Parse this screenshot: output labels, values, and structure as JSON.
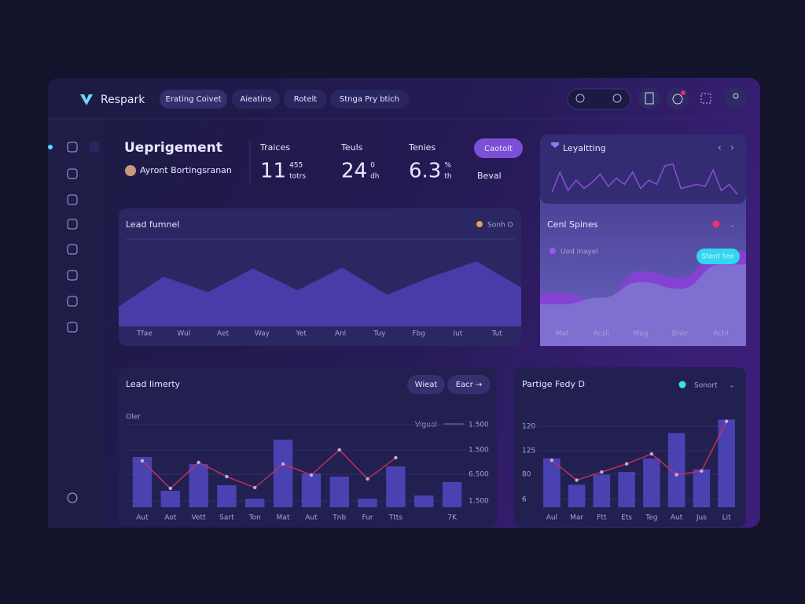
{
  "header": {
    "brand": "Respark",
    "tabs": [
      "Erating Coivet",
      "Aieatins",
      "Rotelt",
      "Stnga Pry btich"
    ]
  },
  "overview": {
    "title": "Ueprigement",
    "user": "Ayront Bortingsranan",
    "stats": [
      {
        "label": "Traices",
        "value": "11",
        "sub": [
          "455",
          "totrs"
        ]
      },
      {
        "label": "Teuls",
        "value": "24",
        "sub": [
          "0",
          "dh"
        ]
      },
      {
        "label": "Tenies",
        "value": "6.3",
        "sub": [
          "%",
          "th"
        ]
      }
    ],
    "button": "Caotolt",
    "link": "Beval"
  },
  "loyalty": {
    "title": "Leyaltting",
    "chart": {
      "type": "line",
      "ylim": [
        0,
        100
      ],
      "color": "#8a4fd8",
      "values": [
        10,
        60,
        15,
        40,
        20,
        35,
        55,
        25,
        45,
        30,
        60,
        20,
        40,
        30,
        75,
        80,
        20,
        25,
        30,
        25,
        65,
        15,
        30,
        5
      ]
    }
  },
  "funnel": {
    "title": "Lead fumnel",
    "legend": "Sonh O",
    "chart": {
      "type": "area",
      "ylim": [
        0,
        100
      ],
      "color": "#4a3fb0",
      "categories": [
        "Tfae",
        "Wul",
        "Aet",
        "Way",
        "Yet",
        "Anl",
        "Tuy",
        "Fbg",
        "Iut",
        "Tut"
      ],
      "values": [
        22,
        55,
        38,
        64,
        40,
        65,
        35,
        55,
        72,
        43
      ]
    }
  },
  "spines": {
    "title": "Cenl Spines",
    "legend": "Uod inayel",
    "badge": "Stent tee",
    "chart": {
      "type": "area",
      "ylim": [
        0,
        100
      ],
      "categories": [
        "Mat",
        "Acsli",
        "Mog",
        "Bnkr",
        "Achl"
      ],
      "series": [
        {
          "color": "#8a3fd8",
          "values": [
            48,
            40,
            68,
            62,
            86
          ]
        },
        {
          "color": "#7d74cf",
          "values": [
            38,
            44,
            58,
            52,
            74
          ]
        }
      ]
    }
  },
  "inventory": {
    "title": "Lead Iimerty",
    "buttons": [
      "Wieat",
      "Eacr →"
    ],
    "note": "Oler",
    "legend": "Vigual",
    "axis_labels": [
      "1.500",
      "1.500",
      "6.500",
      "1.500"
    ],
    "chart": {
      "type": "bar",
      "ylim": [
        0,
        100
      ],
      "categories": [
        "Aut",
        "Aot",
        "Vett",
        "Sart",
        "Ton",
        "Mat",
        "Aut",
        "Tnb",
        "Fur",
        "Ttts",
        null,
        "7K"
      ],
      "bars": {
        "color": "#4a42b0",
        "values": [
          64,
          21,
          55,
          28,
          11,
          86,
          43,
          39,
          11,
          52,
          15,
          32
        ]
      },
      "line": {
        "color": "#c8305a",
        "values": [
          59,
          24,
          57,
          39,
          25,
          55,
          41,
          73,
          36,
          63,
          null,
          null
        ]
      }
    }
  },
  "party": {
    "title": "Partige Fedy D",
    "legend": "Sonort",
    "axis_labels": [
      "120",
      "125",
      "80",
      "6"
    ],
    "chart": {
      "type": "bar",
      "ylim": [
        0,
        100
      ],
      "categories": [
        "Aul",
        "Mar",
        "Ftt",
        "Ets",
        "Teg",
        "Aut",
        "Jus",
        "Lit"
      ],
      "bars": {
        "color": "#4a42b0",
        "values": [
          54,
          25,
          36,
          39,
          54,
          82,
          42,
          97
        ]
      },
      "line": {
        "color": "#c8305a",
        "values": [
          52,
          30,
          39,
          48,
          59,
          36,
          40,
          95
        ]
      }
    }
  }
}
